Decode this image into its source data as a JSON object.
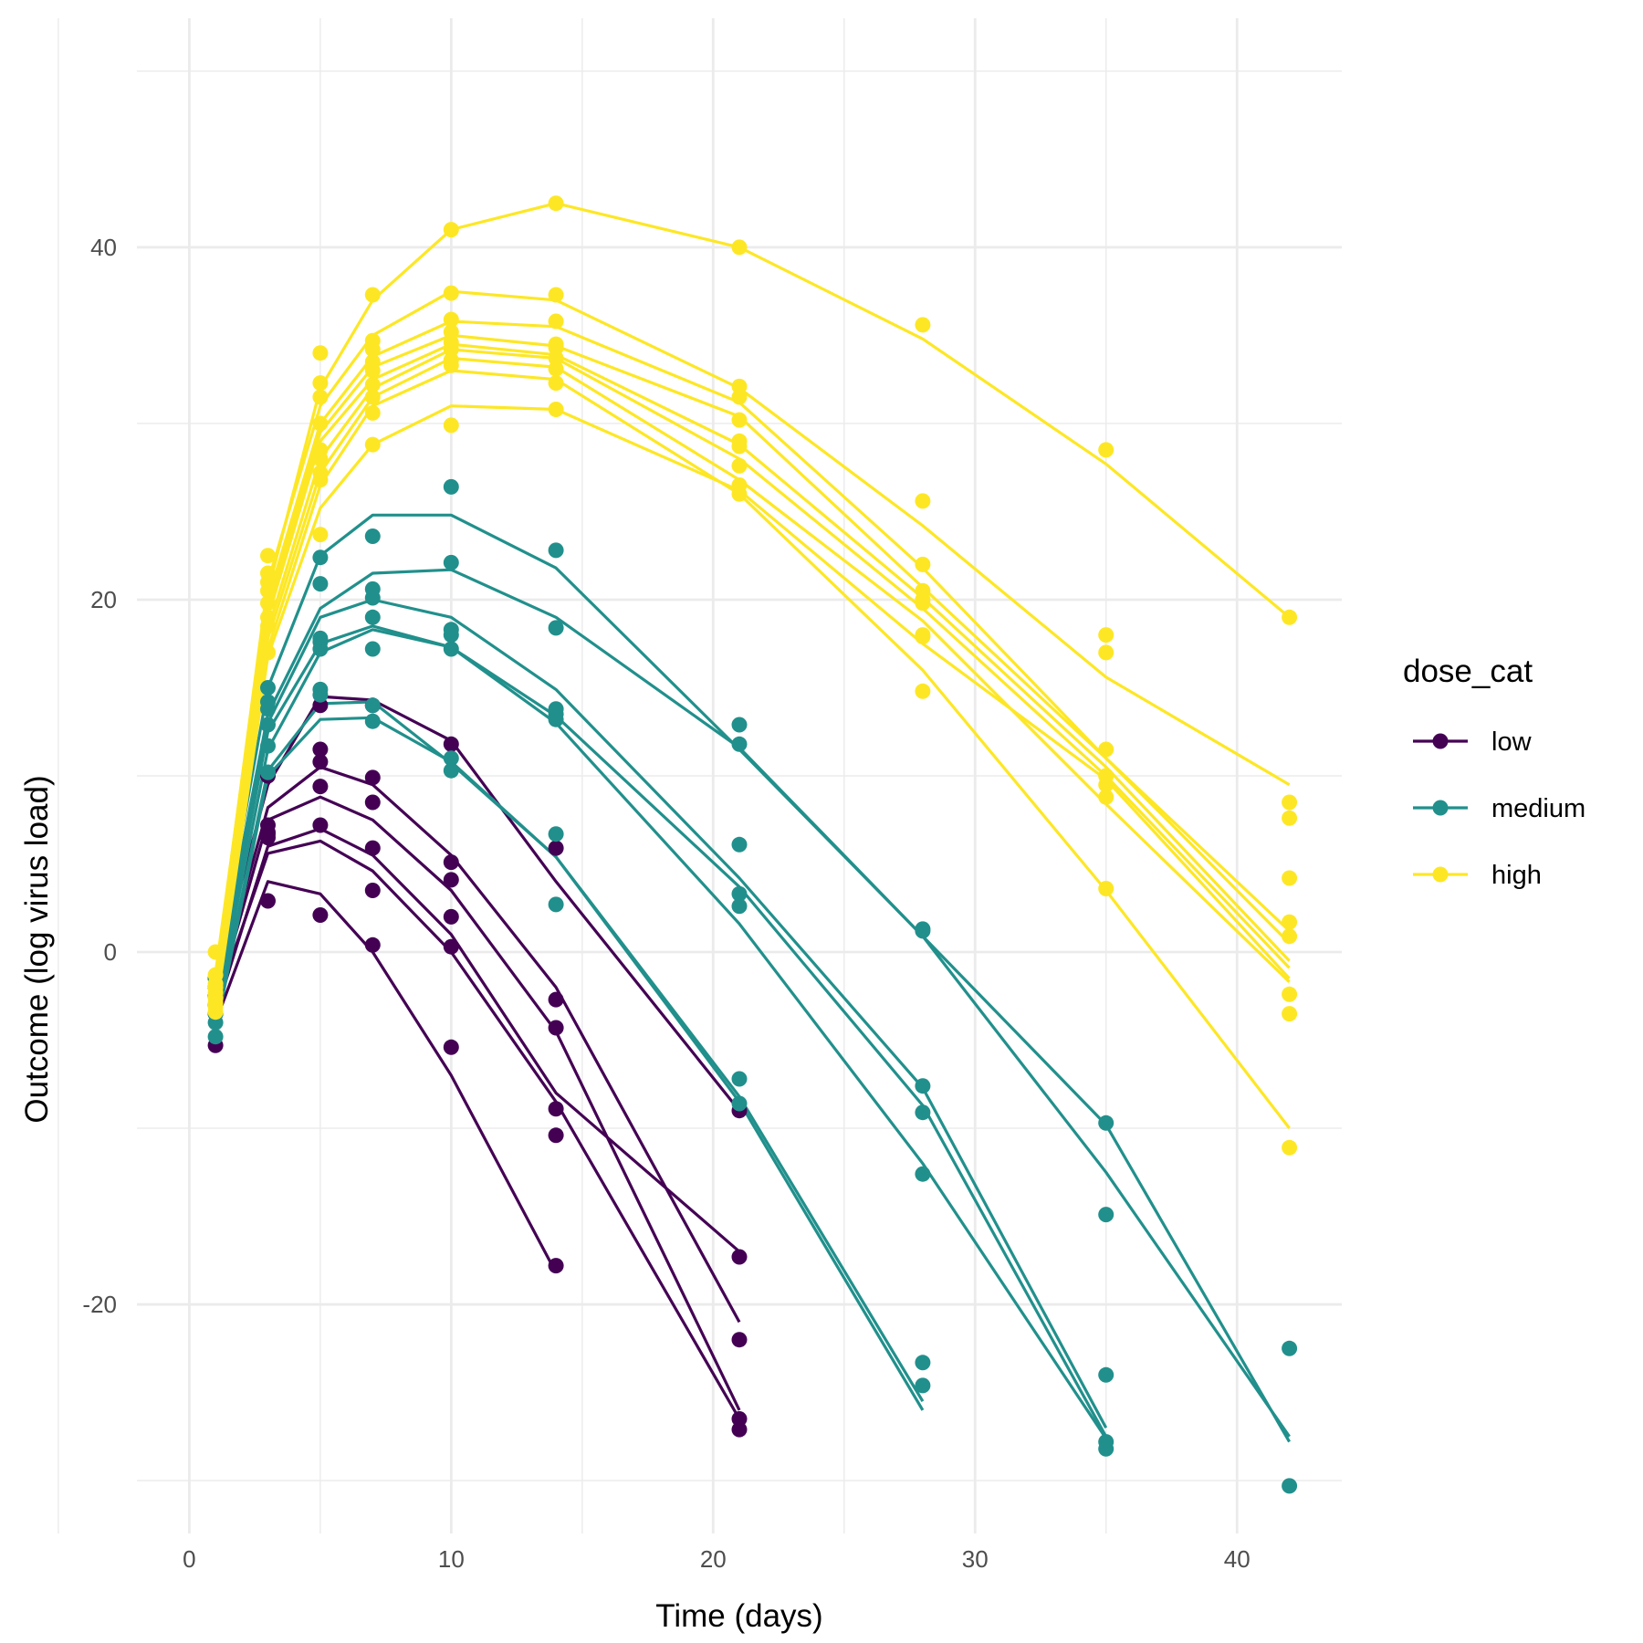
{
  "chart_data": {
    "type": "line",
    "xlabel": "Time (days)",
    "ylabel": "Outcome (log virus load)",
    "xlim": [
      -2,
      44
    ],
    "ylim": [
      -33,
      53
    ],
    "x_ticks": [
      0,
      10,
      20,
      30,
      40
    ],
    "y_ticks": [
      -20,
      0,
      20,
      40
    ],
    "x_tick_labels": [
      "0",
      "10",
      "20",
      "30",
      "40"
    ],
    "y_tick_labels": [
      "-20",
      "0",
      "20",
      "40"
    ],
    "grid": true,
    "legend": {
      "title": "dose_cat",
      "position": "right",
      "entries": [
        {
          "label": "low",
          "color": "#440154"
        },
        {
          "label": "medium",
          "color": "#21908C"
        },
        {
          "label": "high",
          "color": "#FDE725"
        }
      ]
    },
    "series": [
      {
        "group": "low",
        "color": "#440154",
        "x": [
          1,
          3,
          5,
          7,
          10,
          14,
          21
        ],
        "fit": [
          -1.5,
          9.5,
          14.5,
          14.3,
          12.0,
          4.0,
          -9.0
        ],
        "obs": [
          -1.5,
          10.0,
          14.0,
          14.0,
          11.8,
          5.9,
          -9.0
        ]
      },
      {
        "group": "low",
        "color": "#440154",
        "x": [
          1,
          3,
          5,
          7,
          10,
          14,
          21
        ],
        "fit": [
          -2.5,
          8.2,
          10.5,
          9.5,
          5.5,
          -2.0,
          -21.0
        ],
        "obs": [
          -2.0,
          7.2,
          11.5,
          9.9,
          5.1,
          -2.7,
          -22.0
        ]
      },
      {
        "group": "low",
        "color": "#440154",
        "x": [
          1,
          3,
          5,
          7,
          10,
          14,
          21
        ],
        "fit": [
          -3.0,
          7.5,
          8.8,
          7.5,
          3.5,
          -4.5,
          -26.0
        ],
        "obs": [
          -2.5,
          6.8,
          9.4,
          8.5,
          4.1,
          -4.3,
          -26.5
        ]
      },
      {
        "group": "low",
        "color": "#440154",
        "x": [
          1,
          3,
          5,
          7,
          10,
          14,
          21
        ],
        "fit": [
          -3.5,
          6.0,
          7.0,
          5.5,
          1.0,
          -8.0,
          -17.0
        ],
        "obs": [
          -3.0,
          6.5,
          7.2,
          5.9,
          2.0,
          -10.4,
          -17.3
        ]
      },
      {
        "group": "low",
        "color": "#440154",
        "x": [
          1,
          3,
          5,
          7,
          10,
          14,
          21
        ],
        "fit": [
          -3.0,
          5.6,
          6.3,
          4.6,
          0.0,
          -8.5,
          -26.5
        ],
        "obs": [
          -3.5,
          6.7,
          10.8,
          3.5,
          0.3,
          -8.9,
          -27.1
        ]
      },
      {
        "group": "low",
        "color": "#440154",
        "x": [
          1,
          3,
          5,
          7,
          10,
          14
        ],
        "fit": [
          -4.0,
          4.0,
          3.3,
          0.0,
          -7.0,
          -18.2
        ],
        "obs": [
          -5.3,
          2.9,
          2.1,
          0.4,
          -5.4,
          -17.8
        ]
      },
      {
        "group": "medium",
        "color": "#21908C",
        "x": [
          1,
          3,
          5,
          7,
          10,
          14,
          21,
          28,
          35,
          42
        ],
        "fit": [
          -1.5,
          15.0,
          22.5,
          24.8,
          24.8,
          21.8,
          11.5,
          0.9,
          -9.8,
          -27.8
        ],
        "obs": [
          -1.5,
          15.0,
          22.4,
          23.6,
          26.4,
          22.8,
          12.9,
          1.3,
          -9.7,
          -30.3
        ]
      },
      {
        "group": "medium",
        "color": "#21908C",
        "x": [
          1,
          3,
          5,
          7,
          10,
          14,
          21,
          28,
          35,
          42
        ],
        "fit": [
          -2.0,
          13.5,
          19.5,
          21.5,
          21.7,
          19.0,
          11.6,
          0.9,
          -12.5,
          -27.5
        ],
        "obs": [
          -2.0,
          14.2,
          20.9,
          20.6,
          22.1,
          18.4,
          11.8,
          1.2,
          -14.9,
          -22.5
        ]
      },
      {
        "group": "medium",
        "color": "#21908C",
        "x": [
          1,
          3,
          5,
          7,
          10,
          14,
          21,
          28,
          35
        ],
        "fit": [
          -2.5,
          13.0,
          19.0,
          20.0,
          19.0,
          14.9,
          4.2,
          -7.7,
          -27.0
        ],
        "obs": [
          -2.5,
          13.8,
          17.8,
          20.1,
          18.3,
          13.8,
          3.3,
          -7.6,
          -24.0
        ]
      },
      {
        "group": "medium",
        "color": "#21908C",
        "x": [
          1,
          3,
          5,
          7,
          10,
          14,
          21,
          28,
          35
        ],
        "fit": [
          -3.0,
          12.5,
          17.5,
          18.5,
          17.3,
          13.4,
          3.7,
          -8.7,
          -27.5
        ],
        "obs": [
          -3.0,
          12.9,
          17.6,
          19.0,
          18.0,
          13.5,
          6.1,
          -9.1,
          -27.8
        ]
      },
      {
        "group": "medium",
        "color": "#21908C",
        "x": [
          1,
          3,
          5,
          7,
          10,
          14,
          21,
          28,
          35
        ],
        "fit": [
          -3.5,
          11.5,
          17.0,
          18.3,
          17.3,
          13.0,
          1.6,
          -12.0,
          -27.6
        ],
        "obs": [
          -3.5,
          11.7,
          17.2,
          17.2,
          17.2,
          13.2,
          2.6,
          -12.6,
          -28.2
        ]
      },
      {
        "group": "medium",
        "color": "#21908C",
        "x": [
          1,
          3,
          5,
          7,
          10,
          14,
          21,
          28
        ],
        "fit": [
          -4.0,
          10.3,
          14.1,
          14.2,
          10.7,
          5.4,
          -8.2,
          -25.5
        ],
        "obs": [
          -4.0,
          10.2,
          14.9,
          14.0,
          11.0,
          6.7,
          -7.2,
          -23.3
        ]
      },
      {
        "group": "medium",
        "color": "#21908C",
        "x": [
          1,
          3,
          5,
          7,
          10,
          14,
          21,
          28
        ],
        "fit": [
          -4.5,
          10.0,
          13.2,
          13.3,
          10.8,
          5.4,
          -8.5,
          -26.0
        ],
        "obs": [
          -4.8,
          10.2,
          14.6,
          13.1,
          10.3,
          2.7,
          -8.6,
          -24.6
        ]
      },
      {
        "group": "high",
        "color": "#FDE725",
        "x": [
          1,
          3,
          5,
          7,
          10,
          14,
          21,
          28,
          35,
          42
        ],
        "fit": [
          -1.2,
          20.5,
          32.0,
          37.0,
          41.0,
          42.5,
          40.0,
          34.8,
          27.7,
          19.0
        ],
        "obs": [
          0.0,
          22.5,
          34.0,
          37.3,
          41.0,
          42.5,
          40.0,
          35.6,
          28.5,
          19.0
        ]
      },
      {
        "group": "high",
        "color": "#FDE725",
        "x": [
          1,
          3,
          5,
          7,
          10,
          14,
          21,
          28,
          35,
          42
        ],
        "fit": [
          -1.5,
          21.0,
          31.0,
          35.0,
          37.5,
          37.0,
          32.0,
          24.2,
          15.6,
          9.5
        ],
        "obs": [
          -1.3,
          21.5,
          32.3,
          34.7,
          37.4,
          37.3,
          32.1,
          25.6,
          18.0,
          8.5
        ]
      },
      {
        "group": "high",
        "color": "#FDE725",
        "x": [
          1,
          3,
          5,
          7,
          10,
          14,
          21,
          28,
          35,
          42
        ],
        "fit": [
          -1.8,
          20.0,
          30.0,
          33.8,
          35.8,
          35.5,
          31.2,
          21.8,
          11.0,
          1.2
        ],
        "obs": [
          -1.8,
          21.0,
          31.5,
          34.2,
          35.9,
          35.8,
          31.5,
          22.0,
          17.0,
          7.6
        ]
      },
      {
        "group": "high",
        "color": "#FDE725",
        "x": [
          1,
          3,
          5,
          7,
          10,
          14,
          21,
          28,
          35,
          42
        ],
        "fit": [
          -2.0,
          19.5,
          29.5,
          33.2,
          35.0,
          34.4,
          30.4,
          20.7,
          11.0,
          0.5
        ],
        "obs": [
          -2.0,
          20.5,
          30.0,
          33.5,
          35.2,
          34.5,
          30.2,
          20.5,
          11.5,
          4.2
        ]
      },
      {
        "group": "high",
        "color": "#FDE725",
        "x": [
          1,
          3,
          5,
          7,
          10,
          14,
          21,
          28,
          35,
          42
        ],
        "fit": [
          -2.3,
          19.0,
          29.0,
          32.5,
          34.5,
          33.9,
          28.8,
          20.1,
          10.5,
          -0.5
        ],
        "obs": [
          -2.3,
          19.8,
          28.5,
          33.0,
          34.6,
          34.3,
          29.0,
          20.0,
          10.0,
          1.7
        ]
      },
      {
        "group": "high",
        "color": "#FDE725",
        "x": [
          1,
          3,
          5,
          7,
          10,
          14,
          21,
          28,
          35,
          42
        ],
        "fit": [
          -2.6,
          18.3,
          28.0,
          32.0,
          34.2,
          33.7,
          28.0,
          19.5,
          10.0,
          -0.9
        ],
        "obs": [
          -2.6,
          19.0,
          28.0,
          32.2,
          34.2,
          33.7,
          28.7,
          19.8,
          9.5,
          0.9
        ]
      },
      {
        "group": "high",
        "color": "#FDE725",
        "x": [
          1,
          3,
          5,
          7,
          10,
          14,
          21,
          28,
          35,
          42
        ],
        "fit": [
          -2.9,
          17.8,
          27.2,
          31.5,
          33.7,
          33.2,
          26.8,
          18.8,
          8.4,
          -1.7
        ],
        "obs": [
          -2.9,
          18.5,
          27.2,
          31.5,
          33.6,
          33.1,
          26.0,
          18.0,
          8.8,
          -2.4
        ]
      },
      {
        "group": "high",
        "color": "#FDE725",
        "x": [
          1,
          3,
          5,
          7,
          10,
          14,
          21,
          28,
          35,
          42
        ],
        "fit": [
          -3.1,
          17.2,
          26.5,
          31.0,
          33.0,
          32.5,
          26.0,
          16.0,
          3.5,
          -10.0
        ],
        "obs": [
          -3.1,
          17.0,
          26.8,
          30.6,
          33.3,
          32.3,
          26.5,
          14.8,
          3.6,
          -11.1
        ]
      },
      {
        "group": "high",
        "color": "#FDE725",
        "x": [
          1,
          3,
          5,
          7,
          10,
          14,
          21,
          28,
          35,
          42
        ],
        "fit": [
          -3.4,
          16.8,
          25.2,
          28.8,
          31.0,
          30.8,
          26.2,
          17.5,
          9.8,
          -1.5
        ],
        "obs": [
          -3.4,
          17.0,
          23.7,
          28.8,
          29.9,
          30.8,
          27.6,
          17.9,
          10.0,
          -3.5
        ]
      }
    ]
  }
}
